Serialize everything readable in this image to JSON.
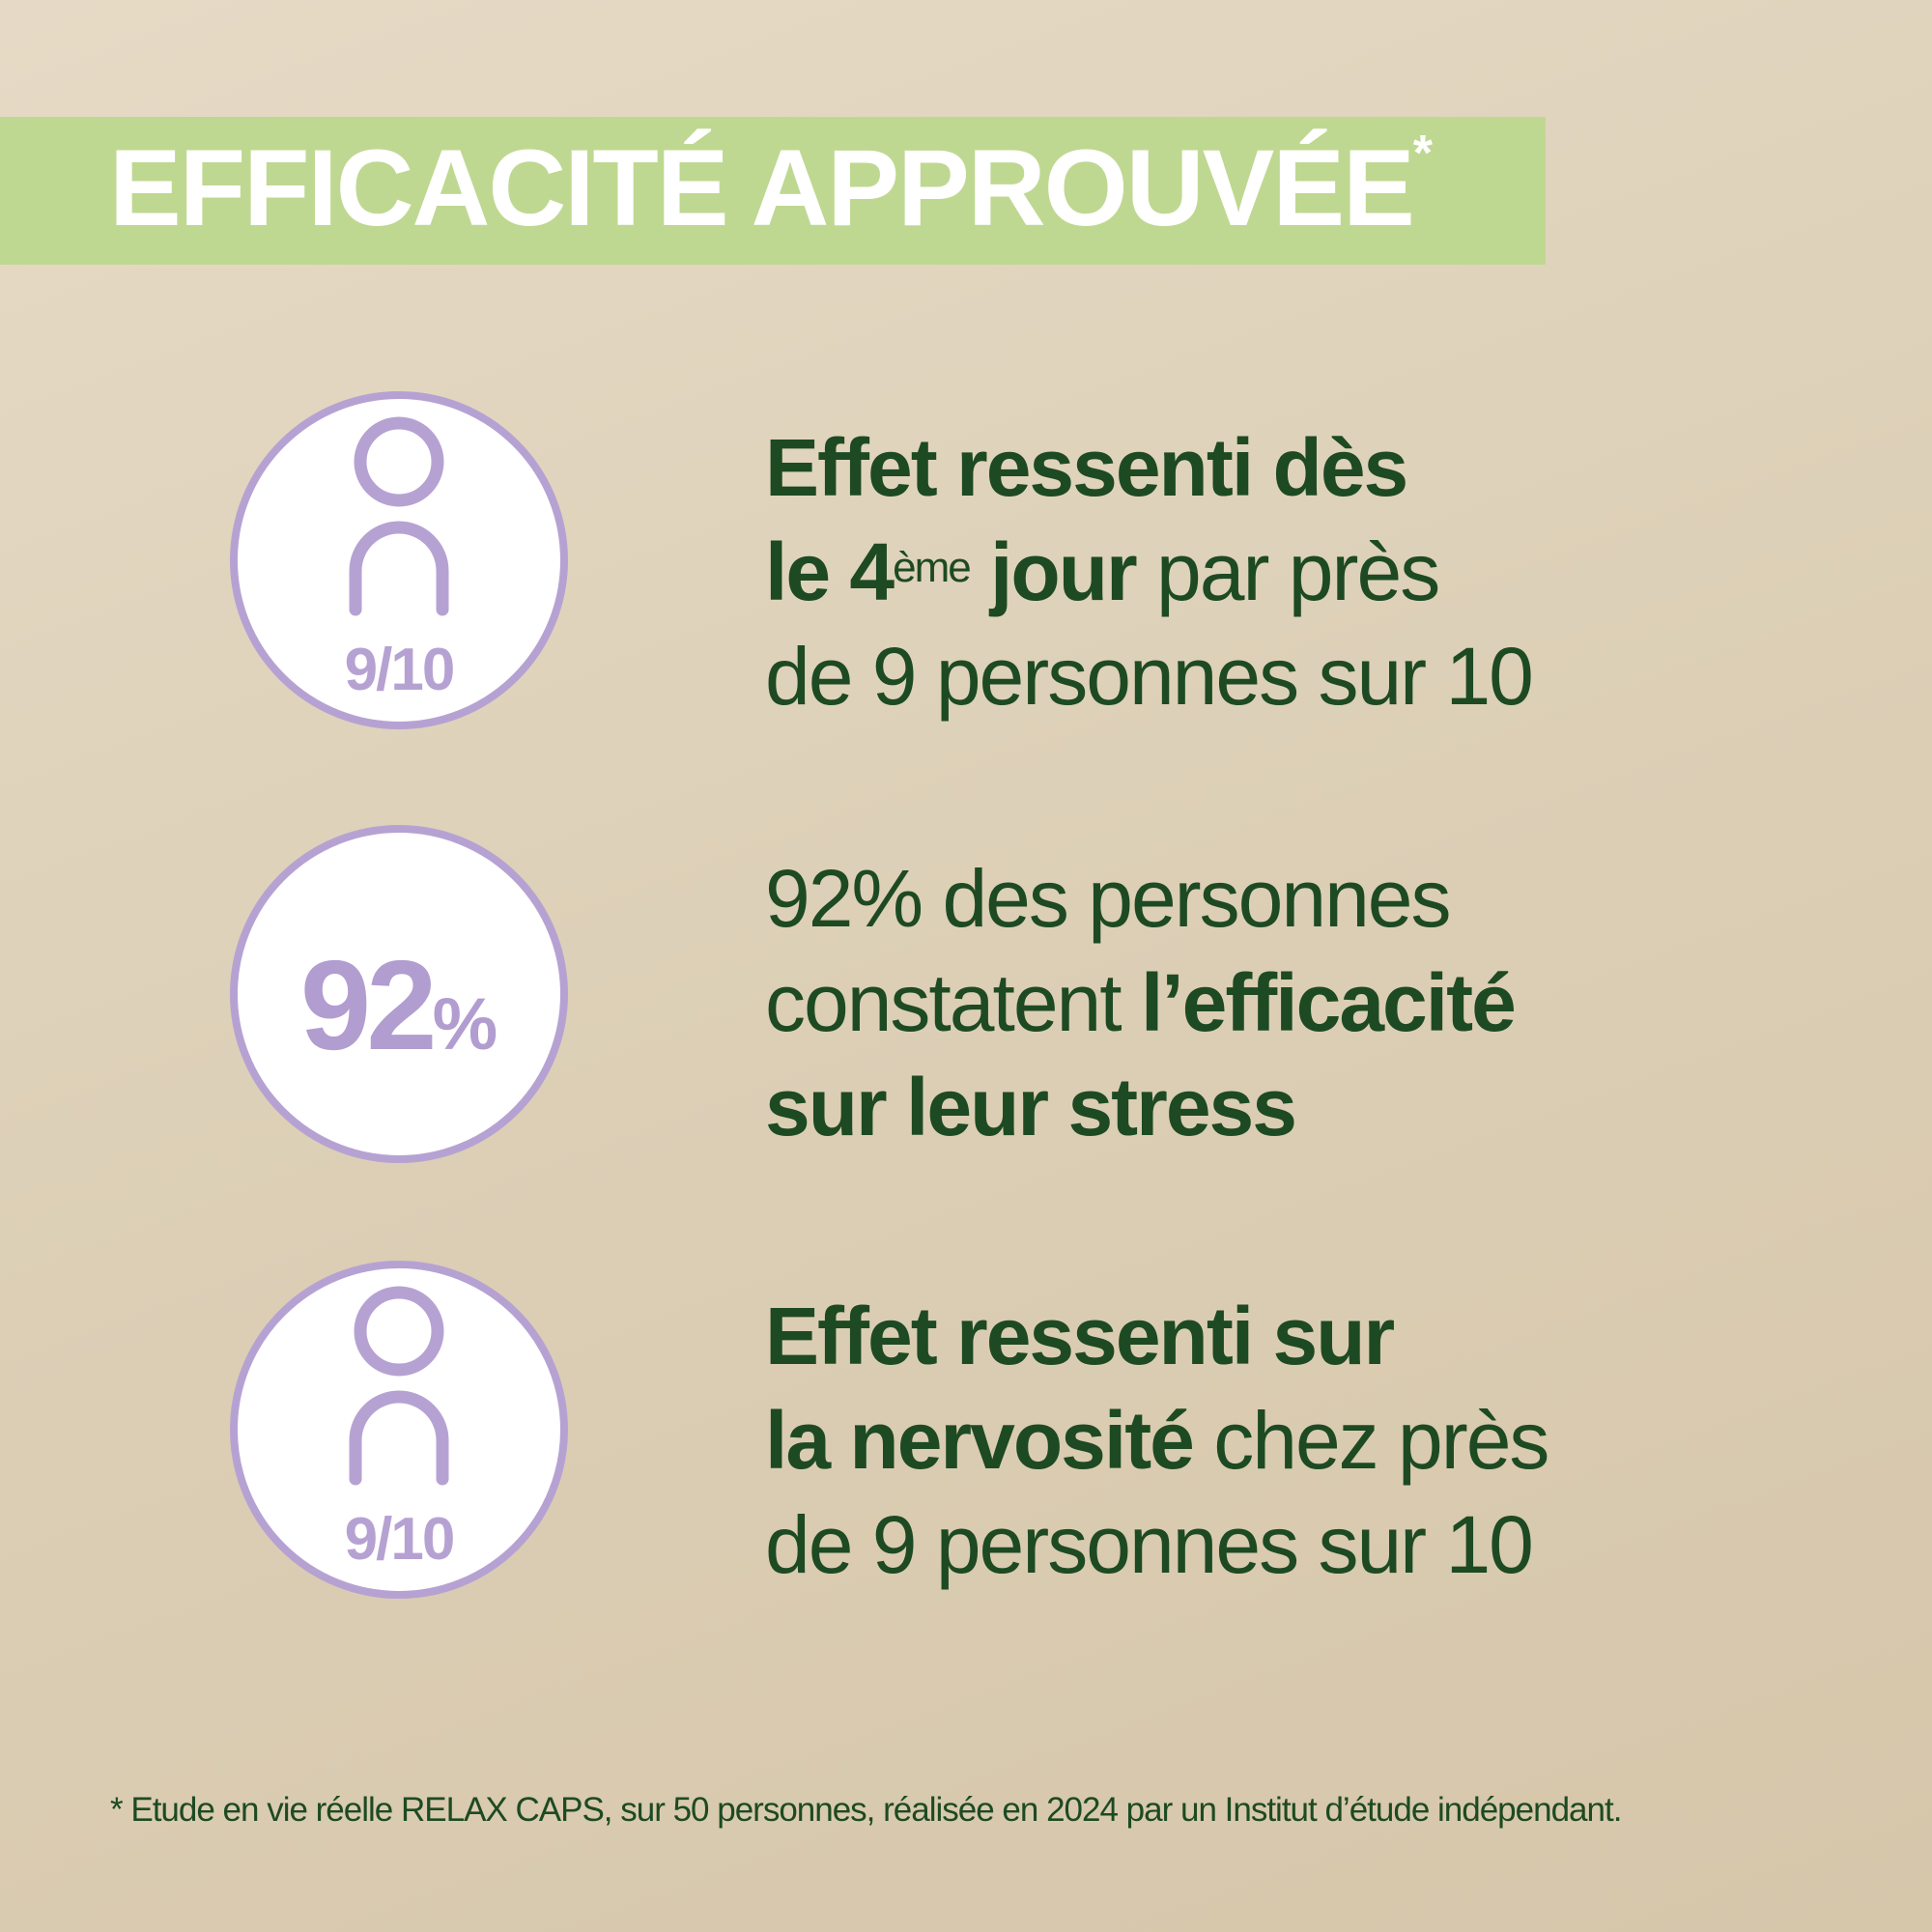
{
  "header": {
    "title": "EFFICACITÉ APPROUVÉE",
    "title_mark": "*"
  },
  "colors": {
    "banner": "#bfd891",
    "accent_purple": "#b6a2d2",
    "text_green": "#1d4a22"
  },
  "stats": [
    {
      "badge": {
        "icon": "person-icon",
        "value": "9/10"
      },
      "lines": [
        [
          {
            "t": "Effet ressenti dès",
            "bold": true
          }
        ],
        [
          {
            "t": "le 4",
            "bold": true
          },
          {
            "sup": "ème"
          },
          {
            "t": " jour",
            "bold": true
          },
          {
            "t": " par près",
            "bold": false
          }
        ],
        [
          {
            "t": "de 9 personnes sur 10",
            "bold": false
          }
        ]
      ],
      "l1": "Effet ressenti dès",
      "l2a": "le 4",
      "l2sup": "ème",
      "l2b": " jour",
      "l2c": " par près",
      "l3": "de 9 personnes sur 10"
    },
    {
      "badge": {
        "value": "92",
        "unit": "%"
      },
      "l1": "92% des personnes",
      "l2a": "constatent ",
      "l2b": "l’efficacité",
      "l3": "sur leur stress"
    },
    {
      "badge": {
        "icon": "person-icon",
        "value": "9/10"
      },
      "l1": "Effet ressenti sur",
      "l2a": "la nervosité",
      "l2b": " chez près",
      "l3": "de 9 personnes sur 10"
    }
  ],
  "footnote": "* Etude en vie réelle RELAX CAPS, sur 50 personnes, réalisée en 2024 par un Institut d’étude indépendant."
}
